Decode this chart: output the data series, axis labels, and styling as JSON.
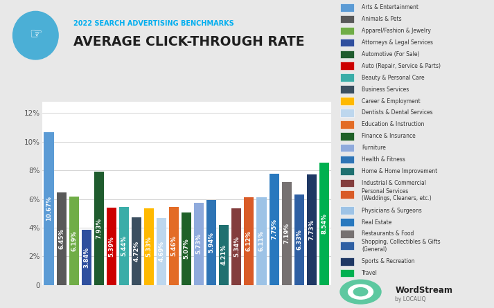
{
  "title_sub": "2022 SEARCH ADVERTISING BENCHMARKS",
  "title_main": "AVERAGE CLICK-THROUGH RATE",
  "values": [
    10.67,
    6.45,
    6.19,
    3.84,
    7.93,
    5.39,
    5.44,
    4.72,
    5.33,
    4.69,
    5.46,
    5.07,
    5.73,
    5.94,
    4.21,
    5.34,
    6.12,
    6.11,
    7.75,
    7.19,
    6.33,
    7.73,
    8.54
  ],
  "bar_colors": [
    "#5B9BD5",
    "#595959",
    "#70AD47",
    "#2F4F9E",
    "#1F5C2E",
    "#CC0000",
    "#3AADA8",
    "#3B4F60",
    "#FFB900",
    "#BDD7EE",
    "#E36C26",
    "#1F6128",
    "#8FAADC",
    "#2E74B5",
    "#1F7070",
    "#833D3D",
    "#D95B27",
    "#9DC3E6",
    "#2878BE",
    "#767171",
    "#2E5FA3",
    "#1F3864",
    "#00B050"
  ],
  "ylim_max": 0.128,
  "ytick_vals": [
    0.0,
    0.02,
    0.04,
    0.06,
    0.08,
    0.1,
    0.12
  ],
  "ytick_labels": [
    "0",
    "2%",
    "4%",
    "6%",
    "8%",
    "10%",
    "12%"
  ],
  "background_color": "#E8E8E8",
  "plot_bg_color": "#FFFFFF",
  "subtitle_color": "#00AEEF",
  "title_color": "#1F1F1F",
  "value_label_color": "#FFFFFF",
  "value_label_fontsize": 6.2,
  "grid_color": "#CCCCCC",
  "legend_items": [
    [
      "Arts & Entertainment",
      "#5B9BD5"
    ],
    [
      "Animals & Pets",
      "#595959"
    ],
    [
      "Apparel/Fashion & Jewelry",
      "#70AD47"
    ],
    [
      "Attorneys & Legal Services",
      "#2F4F9E"
    ],
    [
      "Automotive (For Sale)",
      "#1F5C2E"
    ],
    [
      "Auto (Repair, Service & Parts)",
      "#CC0000"
    ],
    [
      "Beauty & Personal Care",
      "#3AADA8"
    ],
    [
      "Business Services",
      "#3B4F60"
    ],
    [
      "Career & Employment",
      "#FFB900"
    ],
    [
      "Dentists & Dental Services",
      "#BDD7EE"
    ],
    [
      "Education & Instruction",
      "#E36C26"
    ],
    [
      "Finance & Insurance",
      "#1F6128"
    ],
    [
      "Furniture",
      "#8FAADC"
    ],
    [
      "Health & Fitness",
      "#2E74B5"
    ],
    [
      "Home & Home Improvement",
      "#1F7070"
    ],
    [
      "Industrial & Commercial",
      "#833D3D"
    ],
    [
      "Personal Services\n(Weddings, Cleaners, etc.)",
      "#D95B27"
    ],
    [
      "Physicians & Surgeons",
      "#9DC3E6"
    ],
    [
      "Real Estate",
      "#2878BE"
    ],
    [
      "Restaurants & Food",
      "#767171"
    ],
    [
      "Shopping, Collectibles & Gifts\n(General)",
      "#2E5FA3"
    ],
    [
      "Sports & Recreation",
      "#1F3864"
    ],
    [
      "Travel",
      "#00B050"
    ]
  ]
}
